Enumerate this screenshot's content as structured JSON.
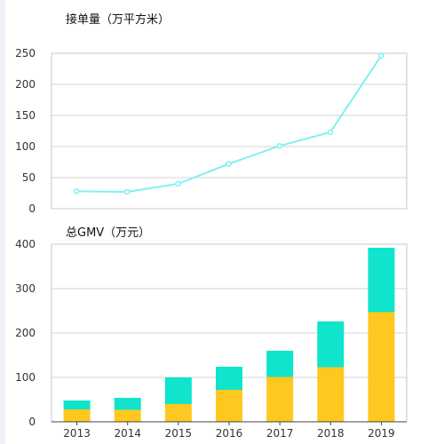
{
  "chart_data": [
    {
      "type": "line",
      "title": "接单量（万平方米）",
      "categories": [
        "2013",
        "2014",
        "2015",
        "2016",
        "2017",
        "2018",
        "2019"
      ],
      "series": [
        {
          "values": [
            28,
            27,
            40,
            72,
            101,
            123,
            246
          ]
        }
      ],
      "ylim": [
        0,
        250
      ],
      "yticks": [
        0,
        50,
        100,
        150,
        200,
        250
      ],
      "grid": true,
      "colors": {
        "line": "#7ff0f5"
      }
    },
    {
      "type": "bar",
      "stacked": true,
      "title": "总GMV（万元）",
      "categories": [
        "2013",
        "2014",
        "2015",
        "2016",
        "2017",
        "2018",
        "2019"
      ],
      "series": [
        {
          "values": [
            28,
            27,
            40,
            72,
            101,
            123,
            247
          ]
        },
        {
          "values": [
            20,
            27,
            60,
            52,
            59,
            103,
            145
          ]
        }
      ],
      "ylim": [
        0,
        400
      ],
      "yticks": [
        0,
        100,
        200,
        300,
        400
      ],
      "grid": true,
      "colors": {
        "bottom": "#ffc820",
        "top": "#10e4cc"
      }
    }
  ]
}
